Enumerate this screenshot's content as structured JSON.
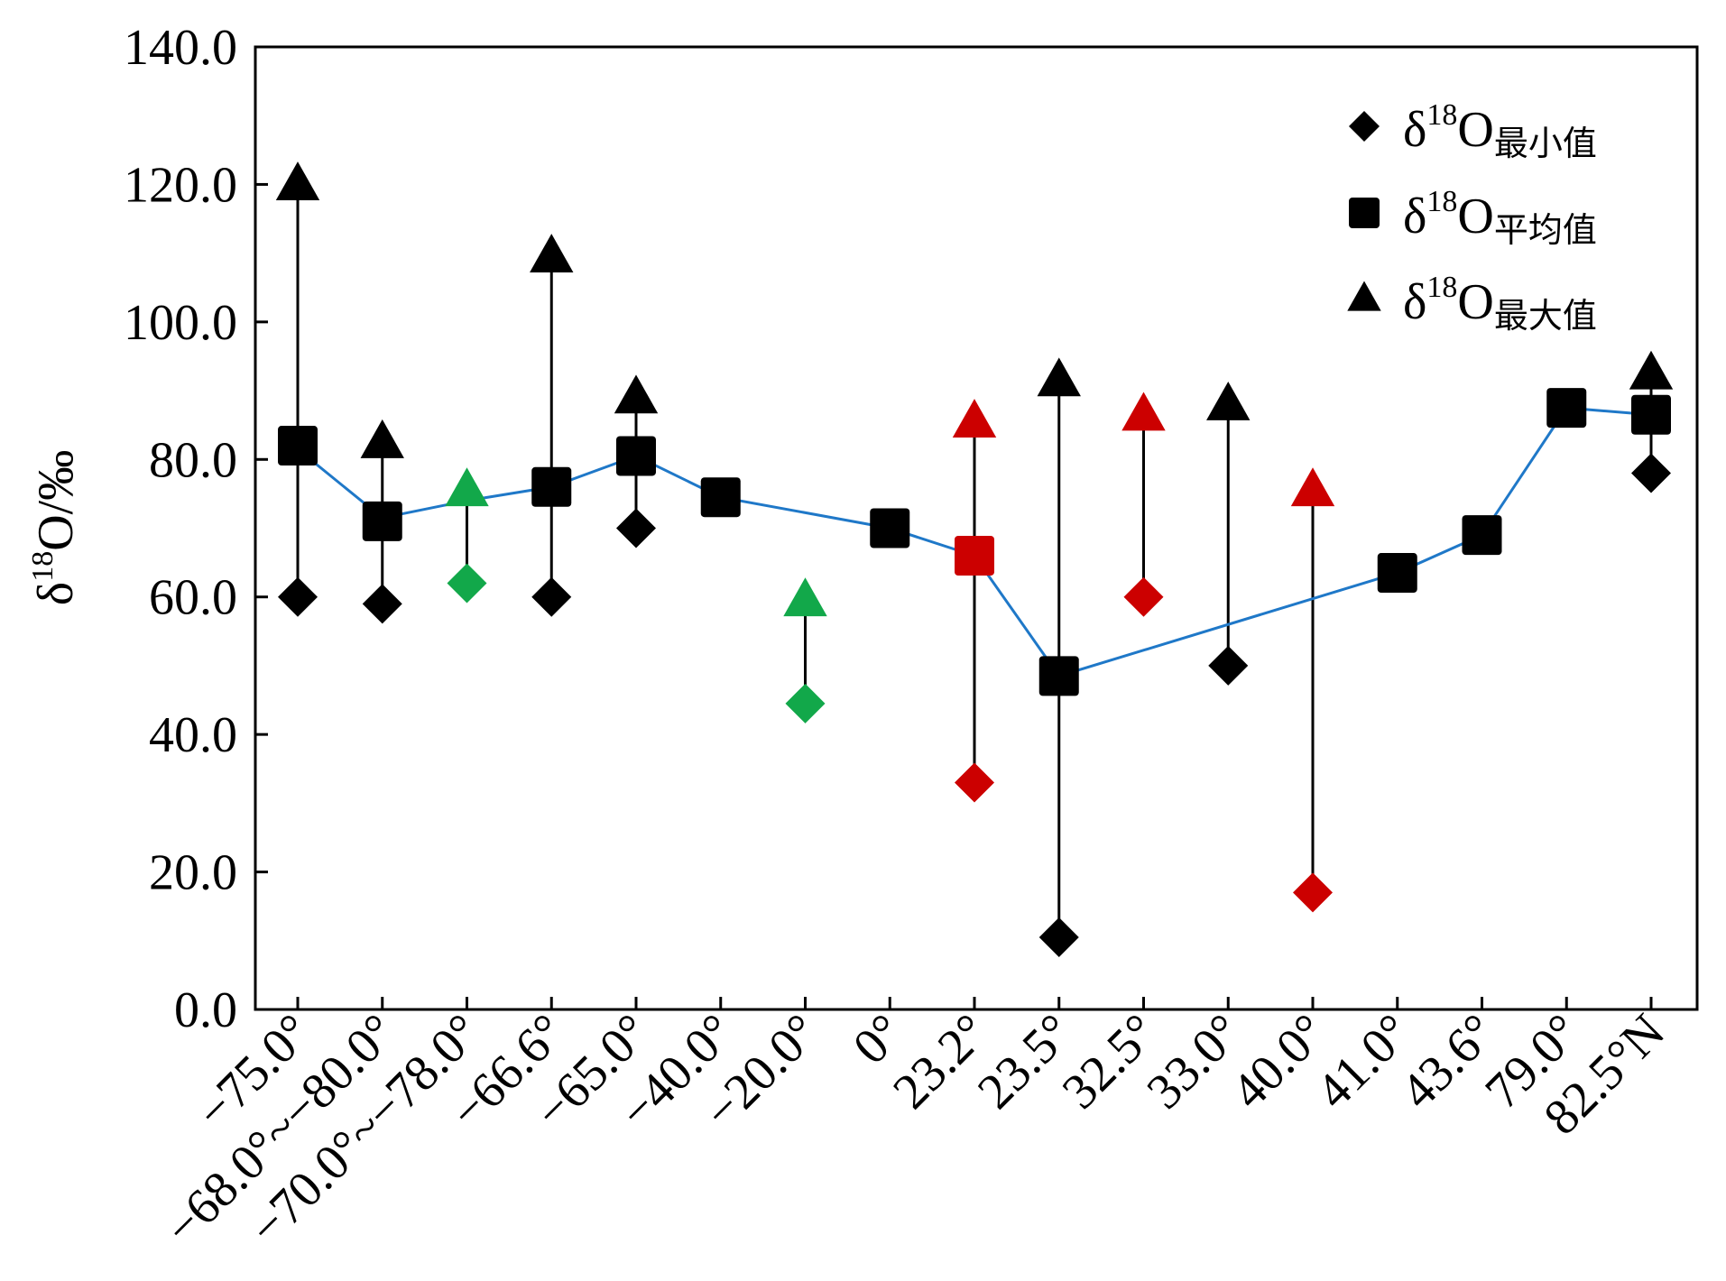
{
  "chart_data": {
    "type": "scatter",
    "title": "",
    "xlabel": "",
    "ylabel": {
      "prefix": "δ",
      "sup": "18",
      "suffix": "O/‰"
    },
    "ylim": [
      0,
      140
    ],
    "yticks": [
      "0.0",
      "20.0",
      "40.0",
      "60.0",
      "80.0",
      "100.0",
      "120.0",
      "140.0"
    ],
    "grid": false,
    "legend_position": "top-right",
    "categories": [
      "−75.0°",
      "−68.0°~−80.0°",
      "−70.0°~−78.0°",
      "−66.6°",
      "−65.0°",
      "−40.0°",
      "−20.0°",
      "0°",
      "23.2°",
      "23.5°",
      "32.5°",
      "33.0°",
      "40.0°",
      "41.0°",
      "43.6°",
      "79.0°",
      "82.5°N"
    ],
    "series": [
      {
        "name": "最小值",
        "legend_prefix": "δ",
        "legend_sup": "18",
        "legend_main": "O",
        "legend_sub": "最小值",
        "marker": "diamond",
        "values": [
          60,
          59,
          62,
          60,
          70,
          null,
          44.5,
          null,
          33,
          10.5,
          60,
          50,
          17,
          null,
          null,
          null,
          78
        ]
      },
      {
        "name": "平均值",
        "legend_prefix": "δ",
        "legend_sup": "18",
        "legend_main": "O",
        "legend_sub": "平均值",
        "marker": "square",
        "values": [
          82,
          71,
          null,
          76,
          80.5,
          74.5,
          null,
          70,
          66,
          48.5,
          null,
          null,
          null,
          63.5,
          69,
          87.5,
          86.5
        ]
      },
      {
        "name": "最大值",
        "legend_prefix": "δ",
        "legend_sup": "18",
        "legend_main": "O",
        "legend_sub": "最大值",
        "marker": "triangle",
        "values": [
          120,
          82.5,
          75.5,
          109.5,
          89,
          null,
          59.5,
          null,
          85.5,
          91.5,
          86.5,
          88,
          75.5,
          null,
          null,
          null,
          92.5
        ]
      }
    ],
    "trend_line_values": [
      81.5,
      71.5,
      74,
      76,
      80.5,
      74.5,
      null,
      70,
      66,
      48.5,
      null,
      null,
      null,
      63.5,
      69,
      87.5,
      86.5
    ],
    "point_colors": [
      "#000000",
      "#000000",
      "#12a84a",
      "#000000",
      "#000000",
      "#000000",
      "#12a84a",
      "#000000",
      "#cc0000",
      "#000000",
      "#cc0000",
      "#000000",
      "#cc0000",
      "#000000",
      "#000000",
      "#000000",
      "#000000"
    ],
    "line_color": "#1f78c8",
    "axis_color": "#000000"
  }
}
